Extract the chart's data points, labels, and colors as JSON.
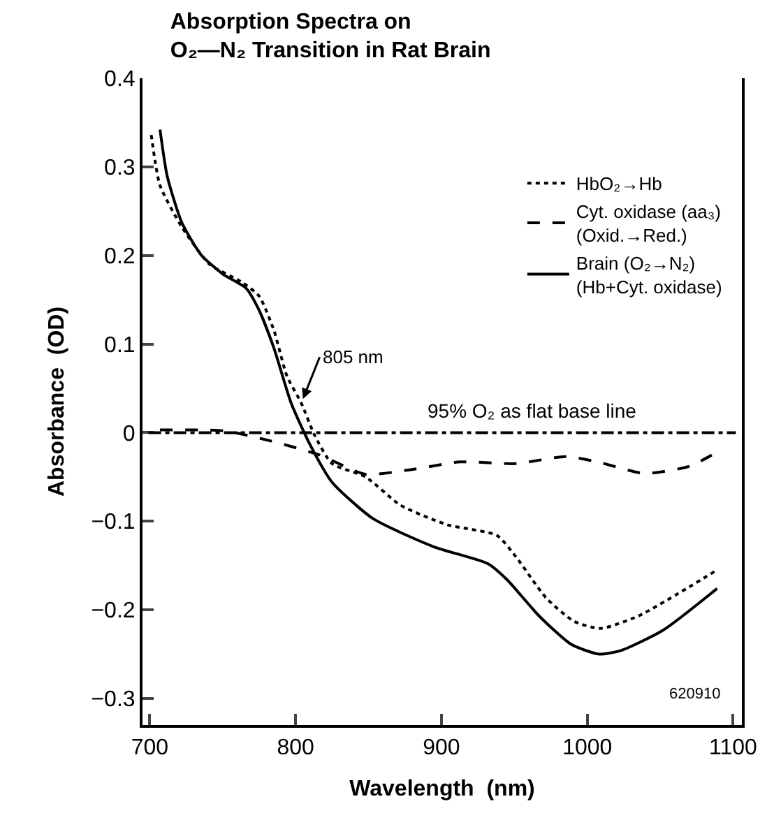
{
  "chart_data": {
    "type": "line",
    "title": "Absorption Spectra on\nO₂—N₂ Transition in Rat Brain",
    "xlabel": "Wavelength  (nm)",
    "ylabel": "Absorbance  (OD)",
    "xlim": [
      695,
      1106
    ],
    "ylim": [
      -0.33,
      0.4
    ],
    "xticks": [
      700,
      800,
      900,
      1000,
      1100
    ],
    "yticks": [
      0.4,
      0.3,
      0.2,
      0.1,
      0,
      {
        "value": -0.1,
        "label": "−0.1"
      },
      {
        "value": -0.2,
        "label": "−0.2"
      },
      {
        "value": -0.3,
        "label": "−0.3"
      }
    ],
    "legend": "top right",
    "marker": "none",
    "series": [
      {
        "name": "HbO₂→Hb",
        "color": "#000000",
        "line_style": "dotted",
        "x": [
          701,
          707,
          722,
          741,
          763,
          775,
          785,
          794,
          804,
          813,
          825,
          848,
          872,
          904,
          938,
          951,
          972,
          991,
          1009,
          1035,
          1089
        ],
        "values": [
          0.336,
          0.279,
          0.232,
          0.19,
          0.17,
          0.154,
          0.116,
          0.064,
          0.033,
          -0.003,
          -0.035,
          -0.05,
          -0.082,
          -0.104,
          -0.116,
          -0.14,
          -0.187,
          -0.213,
          -0.221,
          -0.207,
          -0.155
        ]
      },
      {
        "name": "Cyt. oxidase (aa₃)\n(Oxid.→Red.)",
        "color": "#000000",
        "line_style": "dashed",
        "x": [
          707,
          751,
          782,
          816,
          848,
          882,
          913,
          951,
          985,
          1007,
          1039,
          1070,
          1089
        ],
        "values": [
          0.003,
          0.002,
          -0.009,
          -0.025,
          -0.047,
          -0.041,
          -0.033,
          -0.035,
          -0.027,
          -0.033,
          -0.046,
          -0.038,
          -0.022
        ]
      },
      {
        "name": "Brain (O₂→N₂)\n(Hb+Cyt. oxidase)",
        "color": "#000000",
        "line_style": "solid",
        "x": [
          707,
          712,
          722,
          735,
          750,
          766,
          775,
          785,
          797,
          810,
          825,
          853,
          895,
          932,
          945,
          967,
          989,
          1008,
          1023,
          1052,
          1089
        ],
        "values": [
          0.342,
          0.289,
          0.237,
          0.201,
          0.179,
          0.163,
          0.138,
          0.096,
          0.033,
          -0.014,
          -0.056,
          -0.097,
          -0.129,
          -0.148,
          -0.166,
          -0.207,
          -0.239,
          -0.25,
          -0.246,
          -0.223,
          -0.176
        ]
      }
    ],
    "ref_lines": [
      {
        "axis": "y",
        "value": 0,
        "label": "95% O₂ as flat base line",
        "color": "#000000",
        "line_style": "dashdot"
      }
    ],
    "annotations": [
      {
        "text": "805 nm",
        "x": 805,
        "y": 0.038
      },
      "620910"
    ]
  }
}
